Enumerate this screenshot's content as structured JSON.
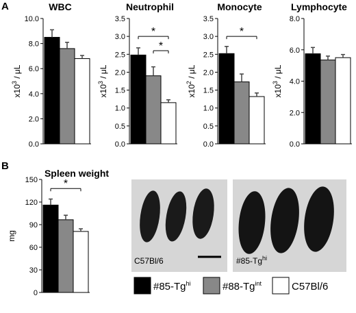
{
  "panel_labels": {
    "a": "A",
    "b": "B"
  },
  "legend": [
    {
      "label": "#85-Tg",
      "sup": "hi",
      "color": "#000000"
    },
    {
      "label": "#88-Tg",
      "sup": "int",
      "color": "#888888"
    },
    {
      "label": "C57Bl/6",
      "sup": "",
      "color": "#ffffff"
    }
  ],
  "photos": [
    {
      "label": "C57Bl/6",
      "sup": ""
    },
    {
      "label": "#85-Tg",
      "sup": "hi"
    }
  ],
  "chart_data": [
    {
      "type": "bar",
      "title": "WBC",
      "ylabel": "x10",
      "ylabel_sup": "3",
      "ylabel_rest": " / μL",
      "ylim": [
        0,
        10
      ],
      "yticks": [
        "0.0",
        "2.0",
        "4.0",
        "6.0",
        "8.0",
        "10.0"
      ],
      "categories": [
        "#85-Tghi",
        "#88-Tgint",
        "C57Bl/6"
      ],
      "values": [
        8.5,
        7.6,
        6.8
      ],
      "errors": [
        0.6,
        0.5,
        0.25
      ],
      "significance": []
    },
    {
      "type": "bar",
      "title": "Neutrophil",
      "ylabel": "x10",
      "ylabel_sup": "3",
      "ylabel_rest": " / μL",
      "ylim": [
        0,
        3.5
      ],
      "yticks": [
        "0.0",
        "0.5",
        "1.0",
        "1.5",
        "2.0",
        "2.5",
        "3.0",
        "3.5"
      ],
      "categories": [
        "#85-Tghi",
        "#88-Tgint",
        "C57Bl/6"
      ],
      "values": [
        2.48,
        1.9,
        1.15
      ],
      "errors": [
        0.2,
        0.25,
        0.08
      ],
      "significance": [
        {
          "from": 0,
          "to": 2,
          "label": "*",
          "y": 3.0
        },
        {
          "from": 1,
          "to": 2,
          "label": "*",
          "y": 2.6
        }
      ]
    },
    {
      "type": "bar",
      "title": "Monocyte",
      "ylabel": "x10",
      "ylabel_sup": "2",
      "ylabel_rest": " / μL",
      "ylim": [
        0,
        3.5
      ],
      "yticks": [
        "0.0",
        "0.5",
        "1.0",
        "1.5",
        "2.0",
        "2.5",
        "3.0",
        "3.5"
      ],
      "categories": [
        "#85-Tghi",
        "#88-Tgint",
        "C57Bl/6"
      ],
      "values": [
        2.52,
        1.73,
        1.32
      ],
      "errors": [
        0.2,
        0.22,
        0.1
      ],
      "significance": [
        {
          "from": 0,
          "to": 2,
          "label": "*",
          "y": 3.0
        }
      ]
    },
    {
      "type": "bar",
      "title": "Lymphocyte",
      "ylabel": "x10",
      "ylabel_sup": "3",
      "ylabel_rest": " / μL",
      "ylim": [
        0,
        8
      ],
      "yticks": [
        "0.0",
        "2.0",
        "4.0",
        "6.0",
        "8.0"
      ],
      "categories": [
        "#85-Tghi",
        "#88-Tgint",
        "C57Bl/6"
      ],
      "values": [
        5.75,
        5.35,
        5.5
      ],
      "errors": [
        0.4,
        0.25,
        0.2
      ],
      "significance": []
    },
    {
      "type": "bar",
      "title": "Spleen weight",
      "ylabel": "mg",
      "ylabel_sup": "",
      "ylabel_rest": "",
      "ylim": [
        0,
        150
      ],
      "yticks": [
        "0",
        "30",
        "60",
        "90",
        "120",
        "150"
      ],
      "categories": [
        "#85-Tghi",
        "#88-Tgint",
        "C57Bl/6"
      ],
      "values": [
        116,
        96.5,
        81
      ],
      "errors": [
        8,
        6,
        3.5
      ],
      "significance": [
        {
          "from": 0,
          "to": 2,
          "label": "*",
          "y": 138
        }
      ]
    }
  ]
}
